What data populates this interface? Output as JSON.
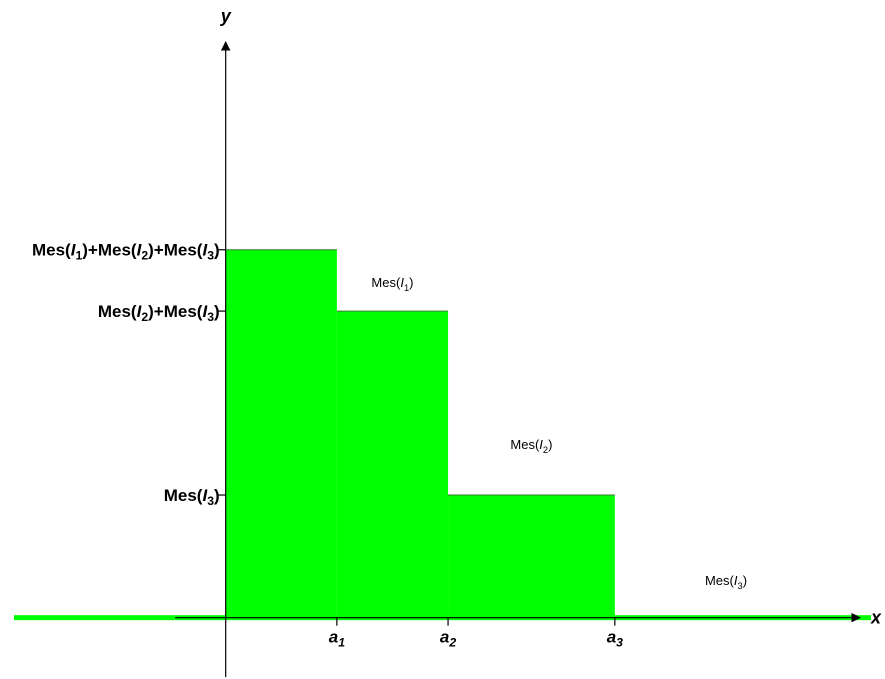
{
  "chart_data": {
    "type": "bar",
    "subtype": "step-function",
    "xlabel": "x",
    "ylabel": "y",
    "grid": false,
    "fill_color": "#00ff00",
    "axis_color": "#000000",
    "x_ticks": [
      {
        "pos": 1,
        "base": "a",
        "sub": "1"
      },
      {
        "pos": 2,
        "base": "a",
        "sub": "2"
      },
      {
        "pos": 3.5,
        "base": "a",
        "sub": "3"
      }
    ],
    "y_ticks": [
      {
        "pos": 1.1,
        "parts": [
          [
            "Mes(",
            ""
          ],
          [
            "I",
            "it"
          ],
          [
            "3",
            "sub"
          ],
          [
            ")",
            ""
          ]
        ]
      },
      {
        "pos": 2.75,
        "parts": [
          [
            "Mes(",
            ""
          ],
          [
            "I",
            "it"
          ],
          [
            "2",
            "sub"
          ],
          [
            ")+Mes(",
            ""
          ],
          [
            "I",
            "it"
          ],
          [
            "3",
            "sub"
          ],
          [
            ")",
            ""
          ]
        ]
      },
      {
        "pos": 3.3,
        "parts": [
          [
            "Mes(",
            ""
          ],
          [
            "I",
            "it"
          ],
          [
            "1",
            "sub"
          ],
          [
            ")+Mes(",
            ""
          ],
          [
            "I",
            "it"
          ],
          [
            "2",
            "sub"
          ],
          [
            ")+Mes(",
            ""
          ],
          [
            "I",
            "it"
          ],
          [
            "3",
            "sub"
          ],
          [
            ")",
            ""
          ]
        ]
      }
    ],
    "bars": [
      {
        "x0": 0,
        "x1": 1,
        "y": 3.3
      },
      {
        "x0": 1,
        "x1": 2,
        "y": 2.75
      },
      {
        "x0": 2,
        "x1": 3.5,
        "y": 1.1
      }
    ],
    "annotations": [
      {
        "x": 1.5,
        "y": 3.0,
        "parts": [
          [
            "Mes(",
            ""
          ],
          [
            "I",
            "it"
          ],
          [
            "1",
            "sub"
          ],
          [
            ")",
            ""
          ]
        ]
      },
      {
        "x": 2.75,
        "y": 1.55,
        "parts": [
          [
            "Mes(",
            ""
          ],
          [
            "I",
            "it"
          ],
          [
            "2",
            "sub"
          ],
          [
            ")",
            ""
          ]
        ]
      },
      {
        "x": 4.5,
        "y": 0.33,
        "parts": [
          [
            "Mes(",
            ""
          ],
          [
            "I",
            "it"
          ],
          [
            "3",
            "sub"
          ],
          [
            ")",
            ""
          ]
        ]
      }
    ],
    "xlim": [
      -2.03,
      5.93
    ],
    "ylim": [
      -0.55,
      5.54
    ]
  }
}
